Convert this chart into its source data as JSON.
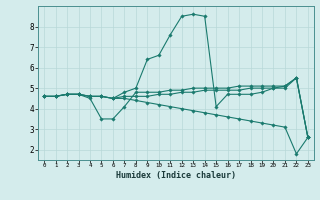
{
  "xlabel": "Humidex (Indice chaleur)",
  "ylabel": "",
  "bg_color": "#d4ecec",
  "grid_color": "#b8d8d8",
  "line_color": "#1a7a6e",
  "xlim": [
    -0.5,
    23.5
  ],
  "ylim": [
    1.5,
    9.0
  ],
  "xticks": [
    0,
    1,
    2,
    3,
    4,
    5,
    6,
    7,
    8,
    9,
    10,
    11,
    12,
    13,
    14,
    15,
    16,
    17,
    18,
    19,
    20,
    21,
    22,
    23
  ],
  "yticks": [
    2,
    3,
    4,
    5,
    6,
    7,
    8
  ],
  "lines": [
    {
      "x": [
        0,
        1,
        2,
        3,
        4,
        5,
        6,
        7,
        8,
        9,
        10,
        11,
        12,
        13,
        14,
        15,
        16,
        17,
        18,
        19,
        20,
        21,
        22,
        23
      ],
      "y": [
        4.6,
        4.6,
        4.7,
        4.7,
        4.6,
        4.6,
        4.5,
        4.8,
        5.0,
        6.4,
        6.6,
        7.6,
        8.5,
        8.6,
        8.5,
        4.1,
        4.7,
        4.7,
        4.7,
        4.8,
        5.0,
        5.1,
        5.5,
        2.6
      ]
    },
    {
      "x": [
        0,
        1,
        2,
        3,
        4,
        5,
        6,
        7,
        8,
        9,
        10,
        11,
        12,
        13,
        14,
        15,
        16,
        17,
        18,
        19,
        20,
        21,
        22,
        23
      ],
      "y": [
        4.6,
        4.6,
        4.7,
        4.7,
        4.5,
        3.5,
        3.5,
        4.1,
        4.8,
        4.8,
        4.8,
        4.9,
        4.9,
        5.0,
        5.0,
        5.0,
        5.0,
        5.1,
        5.1,
        5.1,
        5.1,
        5.1,
        5.5,
        2.6
      ]
    },
    {
      "x": [
        0,
        1,
        2,
        3,
        4,
        5,
        6,
        7,
        8,
        9,
        10,
        11,
        12,
        13,
        14,
        15,
        16,
        17,
        18,
        19,
        20,
        21,
        22,
        23
      ],
      "y": [
        4.6,
        4.6,
        4.7,
        4.7,
        4.6,
        4.6,
        4.5,
        4.6,
        4.6,
        4.6,
        4.7,
        4.7,
        4.8,
        4.8,
        4.9,
        4.9,
        4.9,
        4.9,
        5.0,
        5.0,
        5.0,
        5.0,
        5.5,
        2.6
      ]
    },
    {
      "x": [
        0,
        1,
        2,
        3,
        4,
        5,
        6,
        7,
        8,
        9,
        10,
        11,
        12,
        13,
        14,
        15,
        16,
        17,
        18,
        19,
        20,
        21,
        22,
        23
      ],
      "y": [
        4.6,
        4.6,
        4.7,
        4.7,
        4.6,
        4.6,
        4.5,
        4.5,
        4.4,
        4.3,
        4.2,
        4.1,
        4.0,
        3.9,
        3.8,
        3.7,
        3.6,
        3.5,
        3.4,
        3.3,
        3.2,
        3.1,
        1.8,
        2.6
      ]
    }
  ]
}
